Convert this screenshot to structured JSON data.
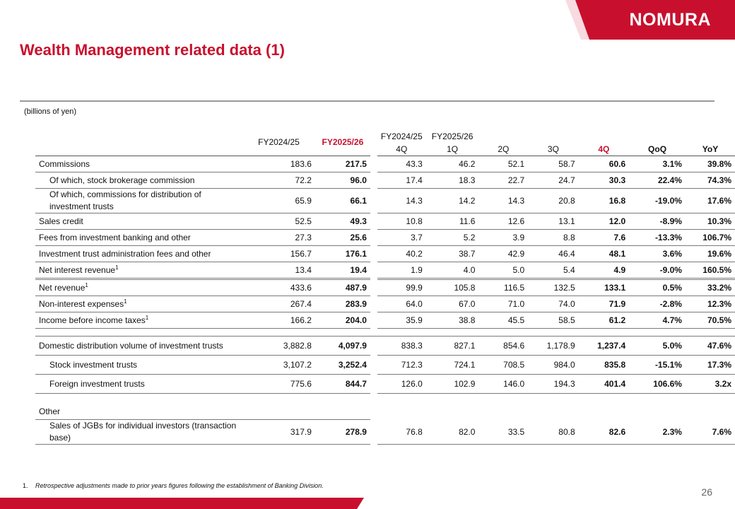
{
  "logo": {
    "text": "NOMURA",
    "band_color": "#c8102e"
  },
  "title": "Wealth Management related data (1)",
  "unit": "(billions of yen)",
  "columns": {
    "fy_prev": "FY2024/25",
    "fy_curr": "FY2025/26",
    "q_prev_group": "FY2024/25",
    "q_curr_group": "FY2025/26",
    "q": [
      "4Q",
      "1Q",
      "2Q",
      "3Q",
      "4Q"
    ],
    "qoq": "QoQ",
    "yoy": "YoY"
  },
  "rows": [
    {
      "label": "Commissions",
      "v": [
        "183.6",
        "217.5",
        "43.3",
        "46.2",
        "52.1",
        "58.7",
        "60.6",
        "3.1%",
        "39.8%"
      ]
    },
    {
      "label": "Of which, stock brokerage commission",
      "v": [
        "72.2",
        "96.0",
        "17.4",
        "18.3",
        "22.7",
        "24.7",
        "30.3",
        "22.4%",
        "74.3%"
      ]
    },
    {
      "label": "Of which, commissions for distribution of investment trusts",
      "v": [
        "65.9",
        "66.1",
        "14.3",
        "14.2",
        "14.3",
        "20.8",
        "16.8",
        "-19.0%",
        "17.6%"
      ]
    },
    {
      "label": "Sales credit",
      "v": [
        "52.5",
        "49.3",
        "10.8",
        "11.6",
        "12.6",
        "13.1",
        "12.0",
        "-8.9%",
        "10.3%"
      ]
    },
    {
      "label": "Fees from investment banking and other",
      "v": [
        "27.3",
        "25.6",
        "3.7",
        "5.2",
        "3.9",
        "8.8",
        "7.6",
        "-13.3%",
        "106.7%"
      ]
    },
    {
      "label": "Investment trust administration fees and other",
      "v": [
        "156.7",
        "176.1",
        "40.2",
        "38.7",
        "42.9",
        "46.4",
        "48.1",
        "3.6%",
        "19.6%"
      ]
    },
    {
      "label": "Net interest revenue",
      "sup": "1",
      "v": [
        "13.4",
        "19.4",
        "1.9",
        "4.0",
        "5.0",
        "5.4",
        "4.9",
        "-9.0%",
        "160.5%"
      ]
    },
    {
      "label": "Net revenue",
      "sup": "1",
      "v": [
        "433.6",
        "487.9",
        "99.9",
        "105.8",
        "116.5",
        "132.5",
        "133.1",
        "0.5%",
        "33.2%"
      ]
    },
    {
      "label": "Non-interest expenses",
      "sup": "1",
      "v": [
        "267.4",
        "283.9",
        "64.0",
        "67.0",
        "71.0",
        "74.0",
        "71.9",
        "-2.8%",
        "12.3%"
      ]
    },
    {
      "label": "Income before income taxes",
      "sup": "1",
      "v": [
        "166.2",
        "204.0",
        "35.9",
        "38.8",
        "45.5",
        "58.5",
        "61.2",
        "4.7%",
        "70.5%"
      ]
    },
    {
      "label": "Domestic distribution volume of investment trusts",
      "v": [
        "3,882.8",
        "4,097.9",
        "838.3",
        "827.1",
        "854.6",
        "1,178.9",
        "1,237.4",
        "5.0%",
        "47.6%"
      ]
    },
    {
      "label": "Stock investment trusts",
      "v": [
        "3,107.2",
        "3,252.4",
        "712.3",
        "724.1",
        "708.5",
        "984.0",
        "835.8",
        "-15.1%",
        "17.3%"
      ]
    },
    {
      "label": "Foreign investment trusts",
      "v": [
        "775.6",
        "844.7",
        "126.0",
        "102.9",
        "146.0",
        "194.3",
        "401.4",
        "106.6%",
        "3.2x"
      ]
    },
    {
      "label": "Other"
    },
    {
      "label": "Sales of JGBs for individual investors (transaction base)",
      "v": [
        "317.9",
        "278.9",
        "76.8",
        "82.0",
        "33.5",
        "80.8",
        "82.6",
        "2.3%",
        "7.6%"
      ]
    }
  ],
  "footnote": {
    "num": "1.",
    "text": "Retrospective adjustments made to prior years figures following the establishment of Banking Division."
  },
  "page_number": "26"
}
